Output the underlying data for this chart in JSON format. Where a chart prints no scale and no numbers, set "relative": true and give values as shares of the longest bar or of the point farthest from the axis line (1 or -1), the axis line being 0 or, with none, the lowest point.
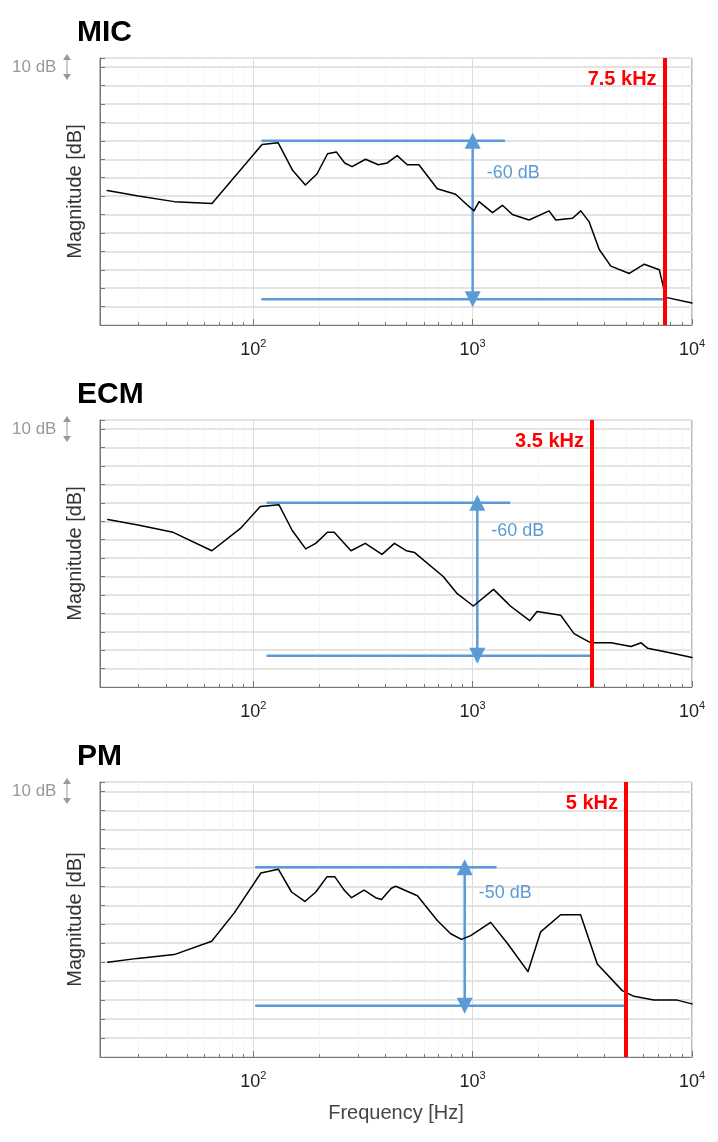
{
  "chart_data": [
    {
      "type": "line",
      "title": "MIC",
      "ylabel": "Magnitude [dB]",
      "relative": true,
      "log": "x",
      "xlim": [
        20,
        10000
      ],
      "xticks": [
        {
          "value": 100,
          "label": "10$^{2}$"
        },
        {
          "value": 1000,
          "label": "10$^{3}$"
        },
        {
          "value": 10000,
          "label": "10$^{4}$"
        }
      ],
      "grid": true,
      "tick_labels": "x",
      "line_style": "solid",
      "series": [
        {
          "color": "#000000",
          "marker": "none",
          "x": [
            21.6,
            29.9,
            43.6,
            64.8,
            109.6,
            129.7,
            151,
            172.7,
            195,
            218,
            239,
            261,
            282,
            325,
            371,
            408,
            453,
            503,
            569,
            690,
            836,
            929,
            1014,
            1069,
            1231,
            1367,
            1518,
            1808,
            2230,
            2393,
            2852,
            3112,
            3398,
            3776,
            4268,
            5176,
            6058,
            7093,
            7606,
            10000
          ],
          "values": [
            0.73,
            0.7,
            0.67,
            0.66,
            0.98,
            0.99,
            0.84,
            0.76,
            0.82,
            0.93,
            0.94,
            0.88,
            0.86,
            0.9,
            0.87,
            0.88,
            0.92,
            0.87,
            0.87,
            0.74,
            0.71,
            0.66,
            0.62,
            0.67,
            0.61,
            0.65,
            0.6,
            0.57,
            0.62,
            0.57,
            0.58,
            0.62,
            0.56,
            0.41,
            0.32,
            0.28,
            0.33,
            0.3,
            0.15,
            0.12
          ]
        },
        {
          "color": "#5b9bd5",
          "marker": "none",
          "x": [
            110,
            1390
          ],
          "values": [
            1,
            1
          ]
        },
        {
          "color": "#5b9bd5",
          "marker": "none",
          "x": [
            110,
            7500
          ],
          "values": [
            0.14,
            0.14
          ]
        },
        {
          "color": "#5b9bd5",
          "marker": "triangle",
          "x": [
            1000,
            1000
          ],
          "values": [
            0.14,
            1
          ]
        }
      ],
      "ref_lines": [
        {
          "axis": "x",
          "value": 7500,
          "label": "7.5 kHz",
          "color": "#ff0000"
        }
      ],
      "annotations": [
        "10 dB",
        {
          "text": "-60 dB",
          "x": 1000,
          "y": 0.83
        }
      ]
    },
    {
      "type": "line",
      "title": "ECM",
      "ylabel": "Magnitude [dB]",
      "relative": true,
      "log": "x",
      "xlim": [
        20,
        10000
      ],
      "xticks": [
        {
          "value": 100,
          "label": "10$^{2}$"
        },
        {
          "value": 1000,
          "label": "10$^{3}$"
        },
        {
          "value": 10000,
          "label": "10$^{4}$"
        }
      ],
      "grid": true,
      "tick_labels": "x",
      "line_style": "solid",
      "series": [
        {
          "color": "#000000",
          "marker": "none",
          "x": [
            21.7,
            29.8,
            43.1,
            64.7,
            87.1,
            107.6,
            130.8,
            150.5,
            173.3,
            192.5,
            217.8,
            233.7,
            278.8,
            324,
            386,
            440,
            498,
            544,
            734,
            845,
            1007,
            1245,
            1485,
            1820,
            1966,
            2520,
            2898,
            3457,
            4270,
            5272,
            5862,
            6285,
            8335,
            10000
          ],
          "values": [
            0.91,
            0.88,
            0.84,
            0.74,
            0.86,
            0.98,
            0.99,
            0.85,
            0.75,
            0.78,
            0.84,
            0.84,
            0.74,
            0.78,
            0.72,
            0.78,
            0.74,
            0.73,
            0.6,
            0.51,
            0.44,
            0.53,
            0.44,
            0.36,
            0.41,
            0.39,
            0.29,
            0.24,
            0.24,
            0.22,
            0.24,
            0.21,
            0.18,
            0.16
          ]
        },
        {
          "color": "#5b9bd5",
          "marker": "none",
          "x": [
            116,
            1470
          ],
          "values": [
            1,
            1
          ]
        },
        {
          "color": "#5b9bd5",
          "marker": "none",
          "x": [
            116,
            3500
          ],
          "values": [
            0.17,
            0.17
          ]
        },
        {
          "color": "#5b9bd5",
          "marker": "triangle",
          "x": [
            1050,
            1050
          ],
          "values": [
            0.17,
            1
          ]
        }
      ],
      "ref_lines": [
        {
          "axis": "x",
          "value": 3500,
          "label": "3.5 kHz",
          "color": "#ff0000"
        }
      ],
      "annotations": [
        "10 dB",
        {
          "text": "-60 dB",
          "x": 1050,
          "y": 0.85
        }
      ]
    },
    {
      "type": "line",
      "title": "PM",
      "ylabel": "Magnitude [dB]",
      "xlabel": "Frequency [Hz]",
      "relative": true,
      "log": "x",
      "xlim": [
        20,
        10000
      ],
      "xticks": [
        {
          "value": 100,
          "label": "10$^{2}$"
        },
        {
          "value": 1000,
          "label": "10$^{3}$"
        },
        {
          "value": 10000,
          "label": "10$^{4}$"
        }
      ],
      "grid": true,
      "tick_labels": "x",
      "line_style": "solid",
      "series": [
        {
          "color": "#000000",
          "marker": "none",
          "x": [
            21.7,
            29.7,
            43.6,
            64.6,
            81.9,
            108.3,
            130,
            149.4,
            171.8,
            192.8,
            216.5,
            235.5,
            259.6,
            280.4,
            320,
            361,
            384,
            426,
            446,
            560,
            690,
            794,
            889,
            980,
            1208,
            1439,
            1787,
            2042,
            2518,
            3105,
            3700,
            4808,
            5434,
            6700,
            8551,
            10000
          ],
          "values": [
            0.5,
            0.52,
            0.54,
            0.61,
            0.76,
            0.97,
            0.99,
            0.87,
            0.82,
            0.87,
            0.95,
            0.95,
            0.88,
            0.84,
            0.88,
            0.84,
            0.83,
            0.89,
            0.9,
            0.85,
            0.72,
            0.65,
            0.62,
            0.64,
            0.71,
            0.6,
            0.45,
            0.66,
            0.75,
            0.75,
            0.49,
            0.35,
            0.32,
            0.3,
            0.3,
            0.28
          ]
        },
        {
          "color": "#5b9bd5",
          "marker": "none",
          "x": [
            103,
            1270
          ],
          "values": [
            1,
            1
          ]
        },
        {
          "color": "#5b9bd5",
          "marker": "none",
          "x": [
            103,
            5000
          ],
          "values": [
            0.27,
            0.27
          ]
        },
        {
          "color": "#5b9bd5",
          "marker": "triangle",
          "x": [
            920,
            920
          ],
          "values": [
            0.27,
            1
          ]
        }
      ],
      "ref_lines": [
        {
          "axis": "x",
          "value": 5000,
          "label": "5 kHz",
          "color": "#ff0000"
        }
      ],
      "annotations": [
        "10 dB",
        {
          "text": "-50 dB",
          "x": 920,
          "y": 0.87
        }
      ]
    }
  ]
}
